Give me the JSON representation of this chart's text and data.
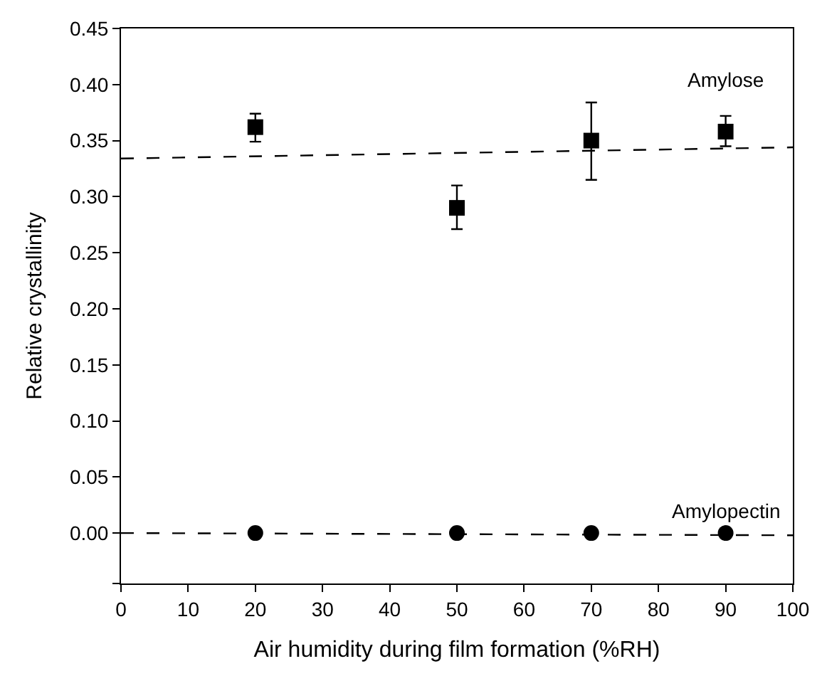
{
  "chart_data": {
    "type": "scatter",
    "xlabel": "Air humidity during film formation (%RH)",
    "ylabel": "Relative crystallinity",
    "xlim": [
      0,
      100
    ],
    "xticks": [
      0,
      10,
      20,
      30,
      40,
      50,
      60,
      70,
      80,
      90,
      100
    ],
    "ylim": [
      -0.045,
      0.45
    ],
    "yticks": [
      {
        "value": -0.045,
        "label": null
      },
      "0.00",
      0.05,
      {
        "value": 0.1,
        "label": "0.10"
      },
      0.15,
      {
        "value": 0.2,
        "label": "0.20"
      },
      0.25,
      {
        "value": 0.3,
        "label": "0.30"
      },
      0.35,
      {
        "value": 0.4,
        "label": "0.40"
      },
      0.45
    ],
    "legend": false,
    "series": [
      {
        "name": "Amylose",
        "marker": "square",
        "color": "#000000",
        "x": [
          20,
          50,
          70,
          90
        ],
        "values": [
          0.362,
          0.29,
          0.35,
          0.358
        ],
        "errors": [
          [
            0.349,
            0.374
          ],
          [
            0.271,
            0.31
          ],
          [
            0.315,
            0.384
          ],
          [
            0.345,
            0.372
          ]
        ]
      },
      {
        "name": "Amylopectin",
        "marker": "circle",
        "color": "#000000",
        "x": [
          20,
          50,
          70,
          90
        ],
        "values": [
          0.0,
          0.0,
          0.0,
          0.0
        ]
      },
      {
        "type": "line",
        "line_style": "dashed",
        "marker": "none",
        "color": "#000000",
        "x": [
          0,
          100
        ],
        "values": [
          0.334,
          0.344
        ]
      },
      {
        "type": "line",
        "line_style": "dashed",
        "marker": "none",
        "color": "#000000",
        "x": [
          0,
          100
        ],
        "values": [
          0.0,
          -0.002
        ]
      }
    ]
  }
}
